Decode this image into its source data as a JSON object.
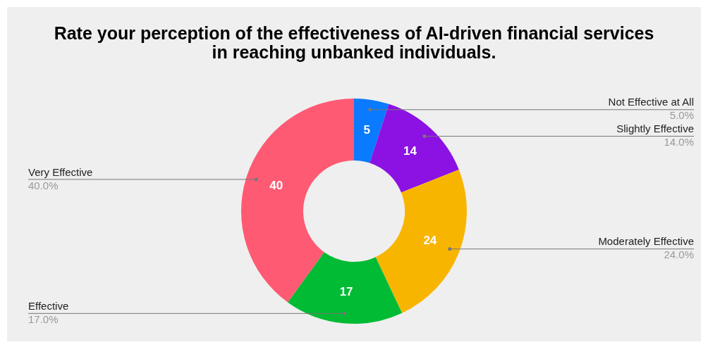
{
  "chart_data": {
    "type": "donut",
    "title": "Rate your perception of the effectiveness of AI-driven financial services in reaching unbanked individuals.",
    "categories": [
      "Not Effective at All",
      "Slightly Effective",
      "Moderately Effective",
      "Effective",
      "Very Effective"
    ],
    "values": [
      5,
      14,
      24,
      17,
      40
    ],
    "colors": [
      "#0a7bff",
      "#8c12e3",
      "#f8b500",
      "#00bb33",
      "#ff5a73"
    ],
    "value_labels": [
      "5",
      "14",
      "24",
      "17",
      "40"
    ],
    "annotations": [
      {
        "text": "5.0%",
        "x": "Not Effective at All"
      },
      {
        "text": "14.0%",
        "x": "Slightly Effective"
      },
      {
        "text": "24.0%",
        "x": "Moderately Effective"
      },
      {
        "text": "17.0%",
        "x": "Effective"
      },
      {
        "text": "40.0%",
        "x": "Very Effective"
      }
    ],
    "legend": false
  }
}
